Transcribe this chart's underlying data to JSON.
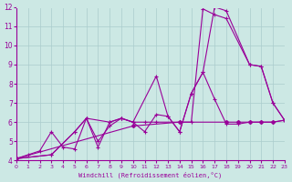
{
  "xlabel": "Windchill (Refroidissement éolien,°C)",
  "xlim": [
    0,
    23
  ],
  "ylim": [
    4,
    12
  ],
  "yticks": [
    4,
    5,
    6,
    7,
    8,
    9,
    10,
    11,
    12
  ],
  "xticks": [
    0,
    1,
    2,
    3,
    4,
    5,
    6,
    7,
    8,
    9,
    10,
    11,
    12,
    13,
    14,
    15,
    16,
    17,
    18,
    19,
    20,
    21,
    22,
    23
  ],
  "bg_color": "#cce8e4",
  "line_color": "#990099",
  "grid_color": "#aacccc",
  "line1_x": [
    0,
    1,
    2,
    3,
    4,
    5,
    6,
    7,
    8,
    9,
    10,
    11,
    12,
    13,
    14,
    15,
    16,
    17,
    18,
    19,
    20,
    21,
    22,
    23
  ],
  "line1_y": [
    4.1,
    4.3,
    4.5,
    5.5,
    4.7,
    4.6,
    6.2,
    4.7,
    6.0,
    6.2,
    6.0,
    5.5,
    6.4,
    6.3,
    5.5,
    7.5,
    8.6,
    7.2,
    5.9,
    5.9,
    6.0,
    6.0,
    6.0,
    6.1
  ],
  "line2_x": [
    0,
    3,
    5,
    6,
    8,
    9,
    10,
    12,
    13,
    14,
    15,
    16,
    17,
    18,
    20,
    21,
    22,
    23
  ],
  "line2_y": [
    4.1,
    4.3,
    5.5,
    6.2,
    6.0,
    6.2,
    6.0,
    8.4,
    6.3,
    5.5,
    7.5,
    8.6,
    12.0,
    11.8,
    9.0,
    8.9,
    7.0,
    6.1
  ],
  "line3_x": [
    0,
    3,
    5,
    6,
    7,
    8,
    9,
    10,
    11,
    12,
    14,
    15,
    16,
    17,
    18,
    20,
    21,
    22,
    23
  ],
  "line3_y": [
    4.1,
    4.3,
    5.5,
    6.2,
    5.0,
    5.8,
    6.2,
    6.0,
    6.0,
    6.0,
    6.0,
    6.0,
    11.9,
    11.6,
    11.4,
    9.0,
    8.9,
    7.0,
    6.1
  ],
  "line4_x": [
    0,
    10,
    14,
    18,
    19,
    20,
    21,
    22,
    23
  ],
  "line4_y": [
    4.1,
    5.8,
    6.0,
    6.0,
    6.0,
    6.0,
    6.0,
    6.0,
    6.1
  ]
}
